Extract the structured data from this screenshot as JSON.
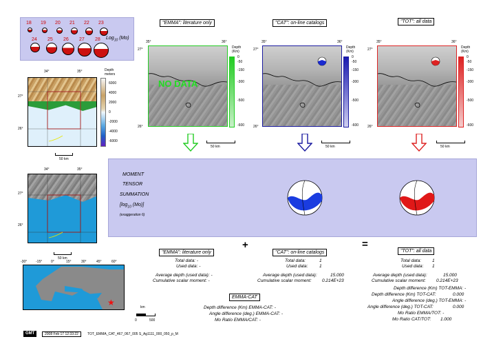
{
  "legend": {
    "row1": [
      "18",
      "19",
      "20",
      "21",
      "22",
      "23"
    ],
    "row2": [
      "24",
      "25",
      "26",
      "27",
      "28"
    ],
    "label": "Log",
    "label_sub": "10",
    "label_unit": "(Mo)"
  },
  "columns": {
    "emma": {
      "title": "\"EMMA\": literature only",
      "color": "#22cc22",
      "no_data": "NO DATA"
    },
    "cat": {
      "title": "\"CAT\": on-line catalogs",
      "color": "#1a1aa0"
    },
    "tot": {
      "title": "\"TOT\": all data",
      "color": "#dd2222"
    }
  },
  "map_ticks": {
    "lon_left": "35°",
    "lon_right": "36°",
    "lat_top": "27°",
    "lat_bottom": "26°",
    "scale": "50 km"
  },
  "depth_scale": {
    "label": "Depth (Km)",
    "ticks": [
      "0",
      "-50",
      "-150",
      "-300",
      "-500",
      "-600"
    ]
  },
  "topo": {
    "label": "Depth meters",
    "lon": [
      "34°",
      "35°"
    ],
    "lat": [
      "27°",
      "26°"
    ],
    "ticks": [
      "6000",
      "4000",
      "2000",
      "0",
      "-2000",
      "-4000",
      "-6000"
    ],
    "scale": "50 km"
  },
  "overview": {
    "lon": [
      "-30°",
      "-15°",
      "0°",
      "15°",
      "30°",
      "45°",
      "60°"
    ],
    "scale_unit": "km",
    "scale_ticks": [
      "0",
      "500"
    ]
  },
  "summation": {
    "line1": "MOMENT",
    "line2": "TENSOR",
    "line3": "SUMMATION",
    "line4a": "[log",
    "line4sub": "10",
    "line4b": " (Mo)]",
    "line5": "(exaggeration 6)"
  },
  "operators": {
    "plus": "+",
    "equals": "="
  },
  "emma_stats": {
    "total": "Total data: -",
    "used": "Used data: -",
    "avg_depth": "Average depth (used data): -",
    "moment": "Cumulative scalar moment: -"
  },
  "cat_stats": {
    "total_label": "Total data:",
    "total": "1",
    "used_label": "Used data:",
    "used": "1",
    "avg_label": "Average depth (used data):",
    "avg": "15.000",
    "moment_label": "Cumulative scalar moment:",
    "moment": "0.214E+23"
  },
  "tot_stats": {
    "total_label": "Total data:",
    "total": "1",
    "used_label": "Used data:",
    "used": "1",
    "avg_label": "Average depth (used data):",
    "avg": "15.000",
    "moment_label": "Cumulative scalar moment:",
    "moment": "0.214E+23",
    "d1": "Depth difference (Km) TOT-EMMA: -",
    "d2": "Depth difference (Km) TOT-CAT:",
    "d2v": "0.000",
    "d3": "Angle difference (deg.) TOT-EMMA: -",
    "d4": "Angle difference (deg.) TOT-CAT:",
    "d4v": "0.000",
    "d5": "Mo Ratio EMMA/TOT: -",
    "d6": "Mo Ratio CAT/TOT:",
    "d6v": "1.000"
  },
  "emma_cat": {
    "title": "EMMA-CAT",
    "l1": "Depth difference (Km) EMMA-CAT: -",
    "l2": "Angle difference (deg.) EMMA-CAT: -",
    "l3": "Mo Ratio EMMA/CAT: -"
  },
  "footer": {
    "logo": "GMT",
    "date": "2008 Feb 17 12:33:22",
    "file": "TOT_EMMA_CAT_467_067_005 S_Ag1111_000_050_p_M"
  }
}
